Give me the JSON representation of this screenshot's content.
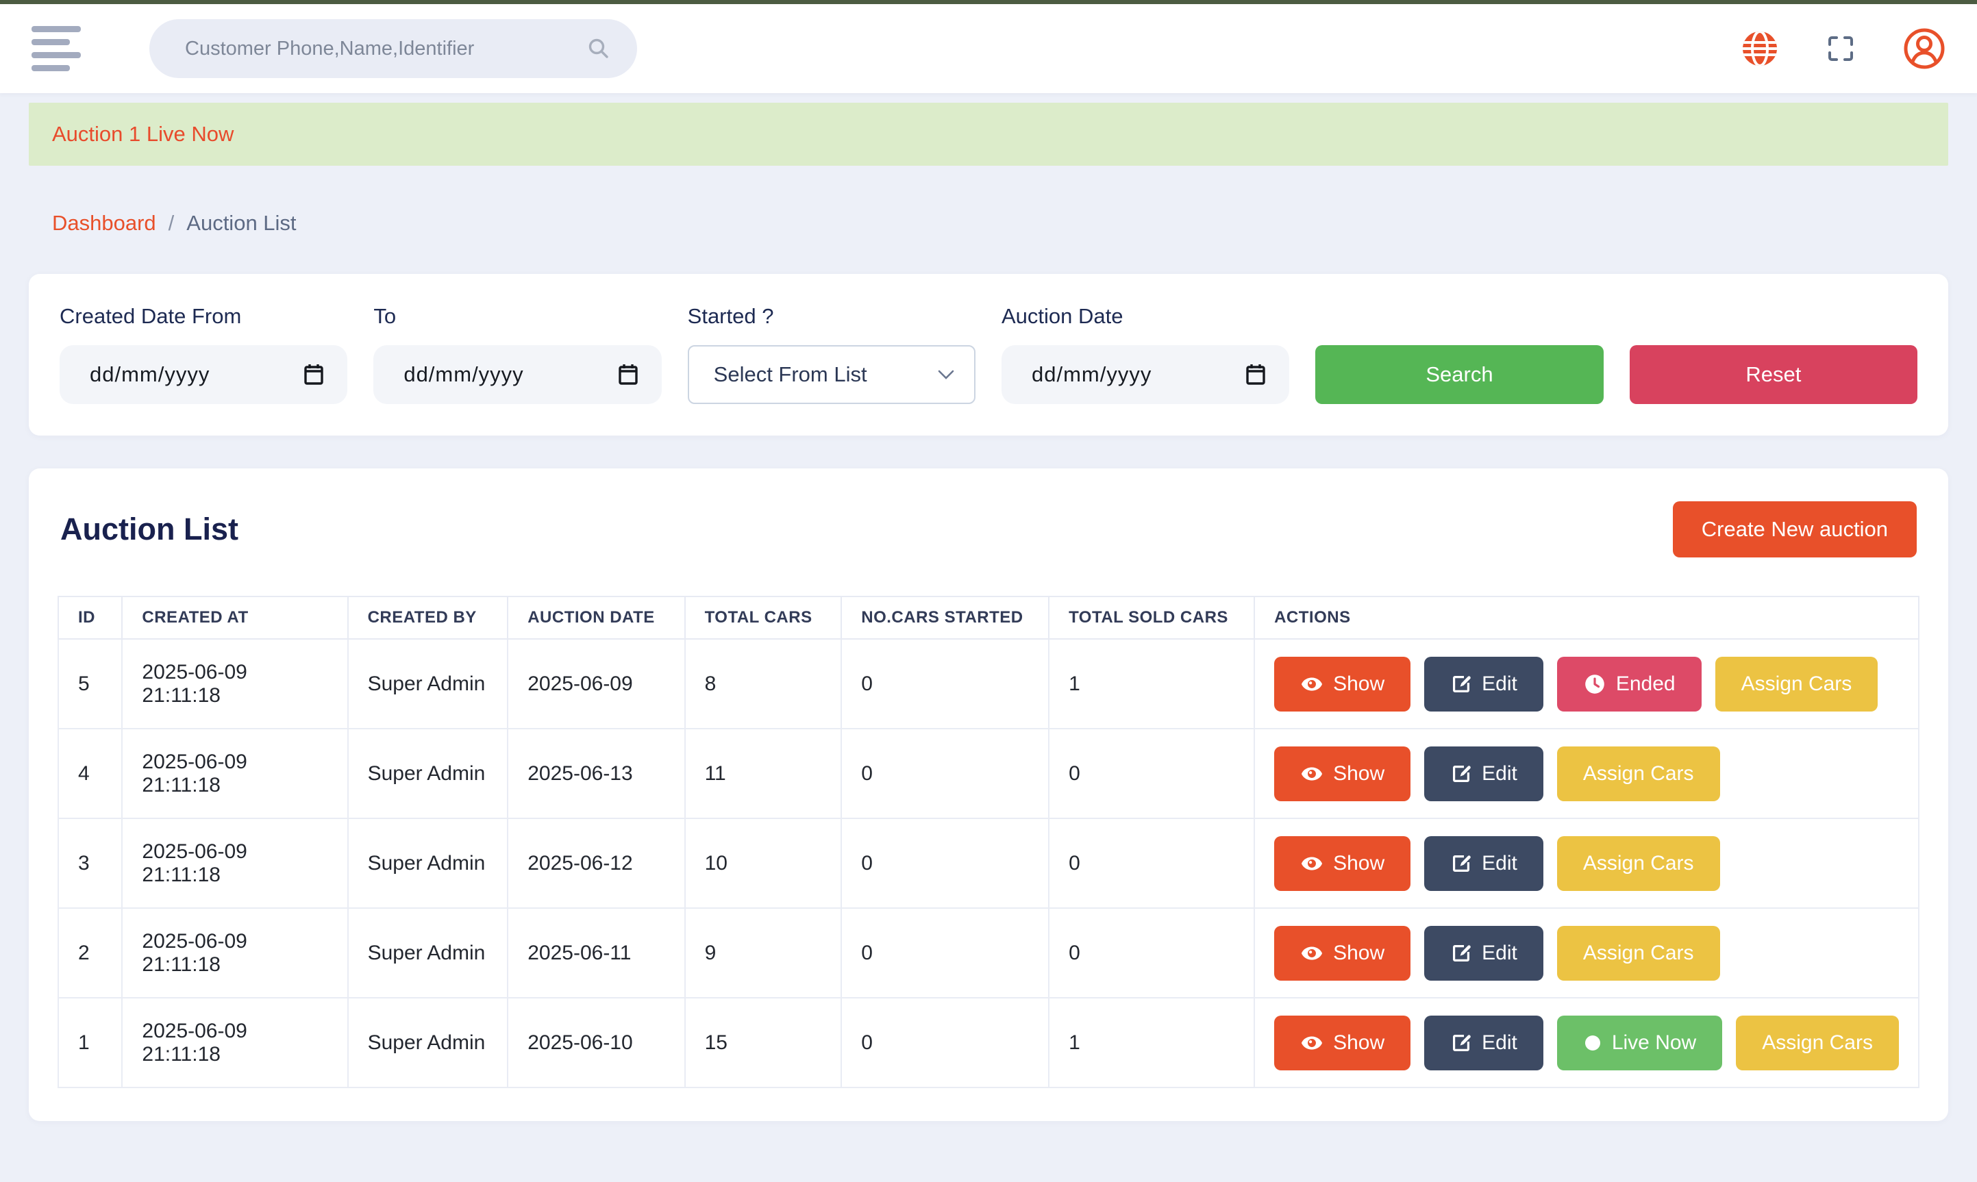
{
  "header": {
    "search_placeholder": "Customer Phone,Name,Identifier"
  },
  "notification": {
    "text": "Auction 1 Live Now"
  },
  "breadcrumb": {
    "items": [
      "Dashboard",
      "Auction List"
    ],
    "separator": "/"
  },
  "filters": {
    "created_date_from": {
      "label": "Created Date From",
      "placeholder": "dd/mm/yyyy"
    },
    "to": {
      "label": "To",
      "placeholder": "dd/mm/yyyy"
    },
    "started": {
      "label": "Started ?",
      "value": "Select From List"
    },
    "auction_date": {
      "label": "Auction Date",
      "placeholder": "dd/mm/yyyy"
    },
    "search_label": "Search",
    "reset_label": "Reset"
  },
  "auction_list": {
    "title": "Auction List",
    "create_button_label": "Create New auction",
    "action_labels": {
      "show": "Show",
      "edit": "Edit",
      "ended": "Ended",
      "assign": "Assign Cars",
      "live": "Live Now"
    },
    "table": {
      "columns": [
        "ID",
        "CREATED AT",
        "CREATED BY",
        "AUCTION DATE",
        "TOTAL CARS",
        "NO.CARS STARTED",
        "TOTAL SOLD CARS",
        "ACTIONS"
      ],
      "rows": [
        {
          "id": "5",
          "created_at": "2025-06-09 21:11:18",
          "created_by": "Super Admin",
          "auction_date": "2025-06-09",
          "total_cars": "8",
          "cars_started": "0",
          "sold_cars": "1",
          "actions": [
            "show",
            "edit",
            "ended",
            "assign"
          ]
        },
        {
          "id": "4",
          "created_at": "2025-06-09 21:11:18",
          "created_by": "Super Admin",
          "auction_date": "2025-06-13",
          "total_cars": "11",
          "cars_started": "0",
          "sold_cars": "0",
          "actions": [
            "show",
            "edit",
            "assign"
          ]
        },
        {
          "id": "3",
          "created_at": "2025-06-09 21:11:18",
          "created_by": "Super Admin",
          "auction_date": "2025-06-12",
          "total_cars": "10",
          "cars_started": "0",
          "sold_cars": "0",
          "actions": [
            "show",
            "edit",
            "assign"
          ]
        },
        {
          "id": "2",
          "created_at": "2025-06-09 21:11:18",
          "created_by": "Super Admin",
          "auction_date": "2025-06-11",
          "total_cars": "9",
          "cars_started": "0",
          "sold_cars": "0",
          "actions": [
            "show",
            "edit",
            "assign"
          ]
        },
        {
          "id": "1",
          "created_at": "2025-06-09 21:11:18",
          "created_by": "Super Admin",
          "auction_date": "2025-06-10",
          "total_cars": "15",
          "cars_started": "0",
          "sold_cars": "1",
          "actions": [
            "show",
            "edit",
            "live",
            "assign"
          ]
        }
      ]
    }
  },
  "colors": {
    "brand_orange": "#e8502a",
    "navy": "#3d4a63",
    "pink": "#dd4a67",
    "yellow": "#ecc343",
    "green": "#55b655",
    "light_green": "#6cc068",
    "notification_bg": "#dcecca",
    "page_bg": "#edf0f8",
    "topbar_border": "#4c5c42"
  }
}
